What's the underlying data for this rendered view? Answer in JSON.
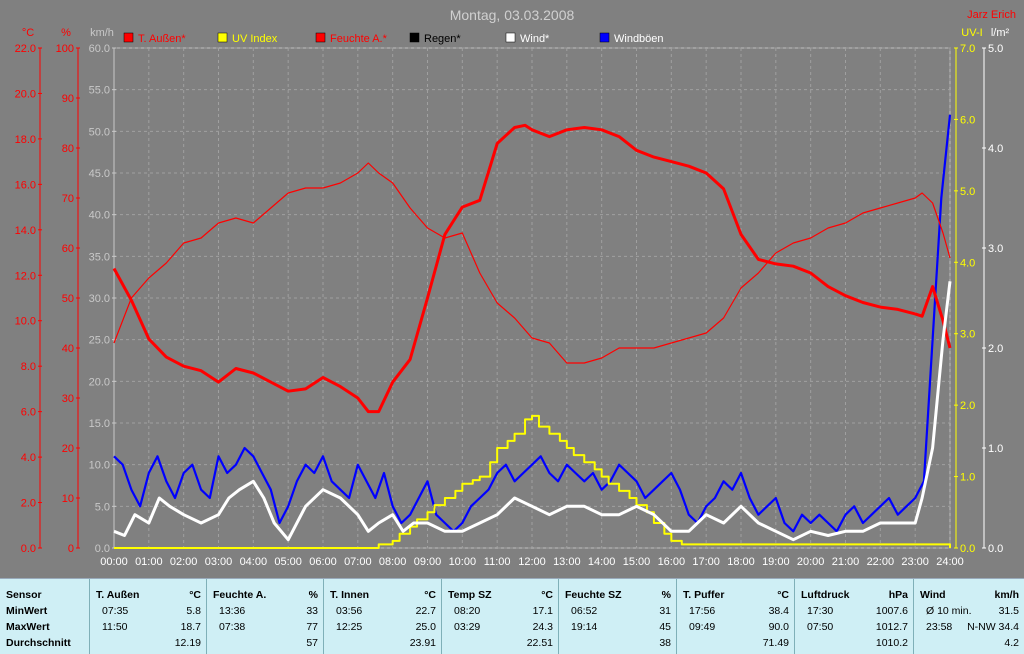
{
  "title": "Montag, 03.03.2008",
  "author": "Jarz Erich",
  "colors": {
    "temp": "#ff0000",
    "uv": "#ffff00",
    "hum": "#ff0000",
    "rain": "#000000",
    "wind": "#ffffff",
    "gust": "#0000ff",
    "plot_bg": "#808080",
    "grid": "#a0a0a0"
  },
  "chart_data": {
    "type": "line",
    "title": "Montag, 03.03.2008",
    "x_ticks": [
      "00:00",
      "01:00",
      "02:00",
      "03:00",
      "04:00",
      "05:00",
      "06:00",
      "07:00",
      "08:00",
      "09:00",
      "10:00",
      "11:00",
      "12:00",
      "13:00",
      "14:00",
      "15:00",
      "16:00",
      "17:00",
      "18:00",
      "19:00",
      "20:00",
      "21:00",
      "22:00",
      "23:00",
      "24:00"
    ],
    "axes": {
      "temp": {
        "unit": "°C",
        "min": 0,
        "max": 22,
        "ticks": [
          "0.0",
          "2.0",
          "4.0",
          "6.0",
          "8.0",
          "10.0",
          "12.0",
          "14.0",
          "16.0",
          "18.0",
          "20.0",
          "22.0"
        ]
      },
      "hum": {
        "unit": "%",
        "min": 0,
        "max": 100,
        "ticks": [
          "0",
          "10",
          "20",
          "30",
          "40",
          "50",
          "60",
          "70",
          "80",
          "90",
          "100"
        ]
      },
      "wind": {
        "unit": "km/h",
        "min": 0,
        "max": 60,
        "ticks": [
          "0.0",
          "5.0",
          "10.0",
          "15.0",
          "20.0",
          "25.0",
          "30.0",
          "35.0",
          "40.0",
          "45.0",
          "50.0",
          "55.0",
          "60.0"
        ]
      },
      "uv": {
        "unit": "UV-I",
        "min": 0,
        "max": 7,
        "ticks": [
          "0.0",
          "1.0",
          "2.0",
          "3.0",
          "4.0",
          "5.0",
          "6.0",
          "7.0"
        ]
      },
      "rain": {
        "unit": "l/m²",
        "min": 0,
        "max": 5,
        "ticks": [
          "0.0",
          "1.0",
          "2.0",
          "3.0",
          "4.0",
          "5.0"
        ]
      }
    },
    "legend": [
      "T. Außen*",
      "UV Index",
      "Feuchte A.*",
      "Regen*",
      "Wind*",
      "Windböen"
    ],
    "series": [
      {
        "name": "T. Außen*",
        "axis": "temp",
        "x": [
          0,
          0.5,
          1,
          1.5,
          2,
          2.5,
          3,
          3.5,
          4,
          4.5,
          5,
          5.5,
          6,
          6.5,
          7,
          7.3,
          7.6,
          8,
          8.5,
          9,
          9.5,
          10,
          10.5,
          11,
          11.5,
          11.8,
          12,
          12.5,
          13,
          13.5,
          14,
          14.5,
          15,
          15.5,
          16,
          16.5,
          17,
          17.5,
          18,
          18.5,
          19,
          19.5,
          20,
          20.5,
          21,
          21.5,
          22,
          22.5,
          23,
          23.2,
          23.5,
          23.8,
          24
        ],
        "y": [
          12.3,
          10.9,
          9.2,
          8.4,
          8.0,
          7.8,
          7.3,
          7.9,
          7.7,
          7.3,
          6.9,
          7.0,
          7.5,
          7.1,
          6.6,
          6.0,
          6.0,
          7.3,
          8.3,
          11.0,
          13.8,
          15.0,
          15.3,
          17.8,
          18.5,
          18.6,
          18.4,
          18.1,
          18.4,
          18.5,
          18.4,
          18.1,
          17.5,
          17.2,
          17.0,
          16.8,
          16.5,
          15.8,
          13.8,
          12.7,
          12.5,
          12.4,
          12.1,
          11.5,
          11.1,
          10.8,
          10.6,
          10.5,
          10.3,
          10.2,
          11.5,
          10.0,
          8.8
        ]
      },
      {
        "name": "Feuchte A.*",
        "axis": "hum",
        "x": [
          0,
          0.5,
          1,
          1.5,
          2,
          2.5,
          3,
          3.5,
          4,
          4.5,
          5,
          5.5,
          6,
          6.5,
          7,
          7.3,
          7.6,
          8,
          8.5,
          9,
          9.5,
          10,
          10.5,
          11,
          11.5,
          12,
          12.5,
          13,
          13.5,
          14,
          14.5,
          15,
          15.5,
          16,
          16.5,
          17,
          17.5,
          18,
          18.5,
          19,
          19.5,
          20,
          20.5,
          21,
          21.5,
          22,
          22.5,
          23,
          23.2,
          23.5,
          23.8,
          24
        ],
        "y": [
          41,
          50,
          54,
          57,
          61,
          62,
          65,
          66,
          65,
          68,
          71,
          72,
          72,
          73,
          75,
          77,
          75,
          73,
          68,
          64,
          62,
          63,
          55,
          49,
          46,
          42,
          41,
          37,
          37,
          38,
          40,
          40,
          40,
          41,
          42,
          43,
          46,
          52,
          55,
          59,
          61,
          62,
          64,
          65,
          67,
          68,
          69,
          70,
          71,
          69,
          63,
          58
        ]
      },
      {
        "name": "UV Index",
        "axis": "uv",
        "x": [
          0,
          7.3,
          7.6,
          8,
          8.2,
          8.5,
          8.7,
          9,
          9.2,
          9.5,
          9.8,
          10,
          10.3,
          10.5,
          10.8,
          11,
          11.3,
          11.5,
          11.8,
          12,
          12.2,
          12.5,
          12.8,
          13,
          13.2,
          13.5,
          13.8,
          14,
          14.2,
          14.5,
          14.8,
          15,
          15.3,
          15.5,
          15.8,
          16,
          16.3,
          24
        ],
        "y": [
          0,
          0,
          0.05,
          0.1,
          0.2,
          0.3,
          0.4,
          0.5,
          0.6,
          0.7,
          0.8,
          0.9,
          0.95,
          1.0,
          1.2,
          1.4,
          1.5,
          1.6,
          1.8,
          1.85,
          1.7,
          1.6,
          1.5,
          1.4,
          1.3,
          1.2,
          1.1,
          1.0,
          0.9,
          0.8,
          0.7,
          0.6,
          0.5,
          0.35,
          0.2,
          0.1,
          0.05,
          0
        ]
      },
      {
        "name": "Wind*",
        "axis": "wind",
        "x": [
          0,
          0.3,
          0.6,
          1,
          1.3,
          1.6,
          2,
          2.5,
          3,
          3.3,
          3.6,
          4,
          4.3,
          4.6,
          5,
          5.5,
          6,
          6.5,
          7,
          7.3,
          7.6,
          8,
          8.3,
          8.6,
          9,
          9.5,
          10,
          10.5,
          11,
          11.5,
          12,
          12.5,
          13,
          13.5,
          14,
          14.5,
          15,
          15.5,
          16,
          16.5,
          17,
          17.5,
          18,
          18.5,
          19,
          19.5,
          20,
          20.5,
          21,
          21.5,
          22,
          22.5,
          23,
          23.2,
          23.5,
          23.8,
          24
        ],
        "y": [
          2,
          1.5,
          4,
          3,
          6,
          5,
          4,
          3,
          4,
          6,
          7,
          8,
          6,
          3,
          1,
          5,
          7,
          6,
          4,
          2,
          3,
          4,
          2,
          3,
          3,
          2,
          2,
          3,
          4,
          6,
          5,
          4,
          5,
          5,
          4,
          4,
          5,
          4,
          2,
          2,
          4,
          3,
          5,
          3,
          2,
          1,
          2,
          1.5,
          2,
          2,
          3,
          3,
          3,
          6,
          12,
          25,
          32
        ]
      },
      {
        "name": "Windböen",
        "axis": "wind",
        "x": [
          0,
          0.25,
          0.5,
          0.75,
          1,
          1.25,
          1.5,
          1.75,
          2,
          2.25,
          2.5,
          2.75,
          3,
          3.25,
          3.5,
          3.75,
          4,
          4.25,
          4.5,
          4.75,
          5,
          5.25,
          5.5,
          5.75,
          6,
          6.25,
          6.5,
          6.75,
          7,
          7.25,
          7.5,
          7.75,
          8,
          8.25,
          8.5,
          8.75,
          9,
          9.25,
          9.5,
          9.75,
          10,
          10.25,
          10.5,
          10.75,
          11,
          11.25,
          11.5,
          11.75,
          12,
          12.25,
          12.5,
          12.75,
          13,
          13.25,
          13.5,
          13.75,
          14,
          14.25,
          14.5,
          14.75,
          15,
          15.25,
          15.5,
          15.75,
          16,
          16.25,
          16.5,
          16.75,
          17,
          17.25,
          17.5,
          17.75,
          18,
          18.25,
          18.5,
          18.75,
          19,
          19.25,
          19.5,
          19.75,
          20,
          20.25,
          20.5,
          20.75,
          21,
          21.25,
          21.5,
          21.75,
          22,
          22.25,
          22.5,
          22.75,
          23,
          23.25,
          23.5,
          23.75,
          24
        ],
        "y": [
          11,
          10,
          7,
          5,
          9,
          11,
          8,
          6,
          9,
          10,
          7,
          6,
          11,
          9,
          10,
          12,
          11,
          9,
          7,
          3,
          5,
          8,
          10,
          9,
          11,
          8,
          7,
          6,
          10,
          8,
          6,
          9,
          5,
          3,
          4,
          6,
          8,
          4,
          3,
          2,
          3,
          5,
          6,
          7,
          9,
          10,
          8,
          9,
          10,
          11,
          9,
          8,
          10,
          9,
          8,
          9,
          7,
          8,
          10,
          9,
          8,
          6,
          7,
          8,
          9,
          7,
          4,
          3,
          5,
          6,
          8,
          7,
          9,
          6,
          4,
          5,
          6,
          3,
          2,
          4,
          3,
          4,
          3,
          2,
          4,
          5,
          3,
          4,
          5,
          6,
          4,
          5,
          6,
          8,
          25,
          42,
          52
        ]
      }
    ]
  },
  "stats": {
    "sensor": {
      "title": "Sensor",
      "min": "MinWert",
      "max": "MaxWert",
      "avg": "Durchschnitt"
    },
    "columns": [
      {
        "name": "T. Außen",
        "unit": "°C",
        "min_t": "07:35",
        "min_v": "5.8",
        "max_t": "11:50",
        "max_v": "18.7",
        "avg": "12.19"
      },
      {
        "name": "Feuchte A.",
        "unit": "%",
        "min_t": "13:36",
        "min_v": "33",
        "max_t": "07:38",
        "max_v": "77",
        "avg": "57"
      },
      {
        "name": "T. Innen",
        "unit": "°C",
        "min_t": "03:56",
        "min_v": "22.7",
        "max_t": "12:25",
        "max_v": "25.0",
        "avg": "23.91"
      },
      {
        "name": "Temp SZ",
        "unit": "°C",
        "min_t": "08:20",
        "min_v": "17.1",
        "max_t": "03:29",
        "max_v": "24.3",
        "avg": "22.51"
      },
      {
        "name": "Feuchte SZ",
        "unit": "%",
        "min_t": "06:52",
        "min_v": "31",
        "max_t": "19:14",
        "max_v": "45",
        "avg": "38"
      },
      {
        "name": "T. Puffer",
        "unit": "°C",
        "min_t": "17:56",
        "min_v": "38.4",
        "max_t": "09:49",
        "max_v": "90.0",
        "avg": "71.49"
      },
      {
        "name": "Luftdruck",
        "unit": "hPa",
        "min_t": "17:30",
        "min_v": "1007.6",
        "max_t": "07:50",
        "max_v": "1012.7",
        "avg": "1010.2"
      },
      {
        "name": "Wind",
        "unit": "km/h",
        "min_t": "Ø 10 min.",
        "min_v": "31.5",
        "max_t": "23:58",
        "max_v": "N-NW 34.4",
        "avg": "4.2"
      }
    ]
  }
}
